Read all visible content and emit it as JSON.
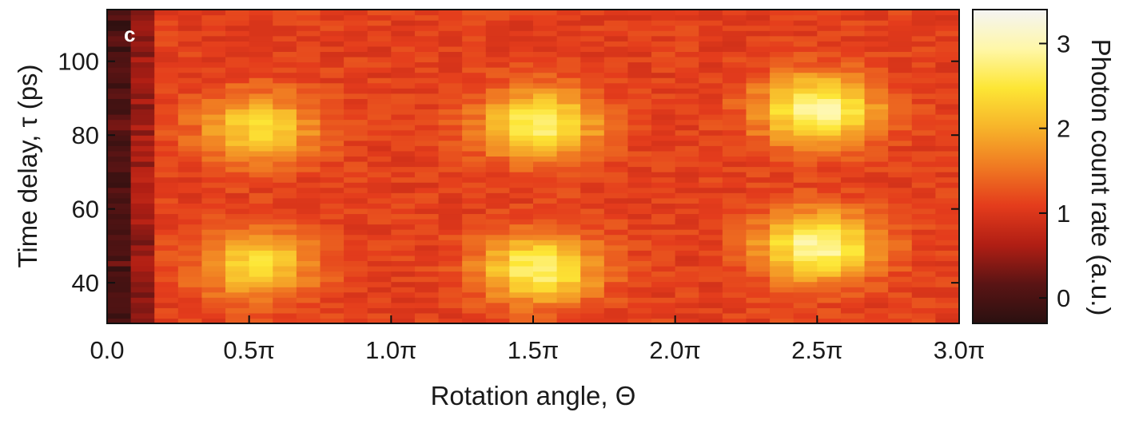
{
  "chart_data": {
    "type": "heatmap",
    "panel_label": "c",
    "xlabel": "Rotation angle, Θ",
    "ylabel": "Time delay, τ (ps)",
    "colorbar_label": "Photon count rate (a.u.)",
    "xlim_pi": [
      0,
      3.0
    ],
    "ylim": [
      29,
      114
    ],
    "x_ticks": [
      {
        "value": 0.0,
        "label": "0.0"
      },
      {
        "value": 0.5,
        "label": "0.5π"
      },
      {
        "value": 1.0,
        "label": "1.0π"
      },
      {
        "value": 1.5,
        "label": "1.5π"
      },
      {
        "value": 2.0,
        "label": "2.0π"
      },
      {
        "value": 2.5,
        "label": "2.5π"
      },
      {
        "value": 3.0,
        "label": "3.0π"
      }
    ],
    "y_ticks": [
      {
        "value": 40,
        "label": "40"
      },
      {
        "value": 60,
        "label": "60"
      },
      {
        "value": 80,
        "label": "80"
      },
      {
        "value": 100,
        "label": "100"
      }
    ],
    "colorbar_range": [
      -0.3,
      3.4
    ],
    "colorbar_ticks": [
      {
        "value": 0,
        "label": "0"
      },
      {
        "value": 1,
        "label": "1"
      },
      {
        "value": 2,
        "label": "2"
      },
      {
        "value": 3,
        "label": "3"
      }
    ],
    "colormap": [
      "#2a1010",
      "#5a1414",
      "#b01e14",
      "#e43c1c",
      "#f07a22",
      "#f7b42a",
      "#fde635",
      "#fff7a8",
      "#f4f4f4"
    ],
    "grid": false,
    "model": {
      "description_free": true,
      "peaks": [
        {
          "x": 0.53,
          "y": 82,
          "amp": 2.4
        },
        {
          "x": 0.53,
          "y": 45,
          "amp": 2.4
        },
        {
          "x": 1.52,
          "y": 83,
          "amp": 2.8
        },
        {
          "x": 1.52,
          "y": 44,
          "amp": 2.8
        },
        {
          "x": 2.5,
          "y": 87,
          "amp": 3.0
        },
        {
          "x": 2.5,
          "y": 50,
          "amp": 3.0
        }
      ],
      "background": 1.1,
      "dark_columns": [
        {
          "x_from": 0.0,
          "x_to": 0.08,
          "value": -0.1
        },
        {
          "x_from": 0.08,
          "x_to": 0.2,
          "value": 0.4
        }
      ]
    }
  }
}
